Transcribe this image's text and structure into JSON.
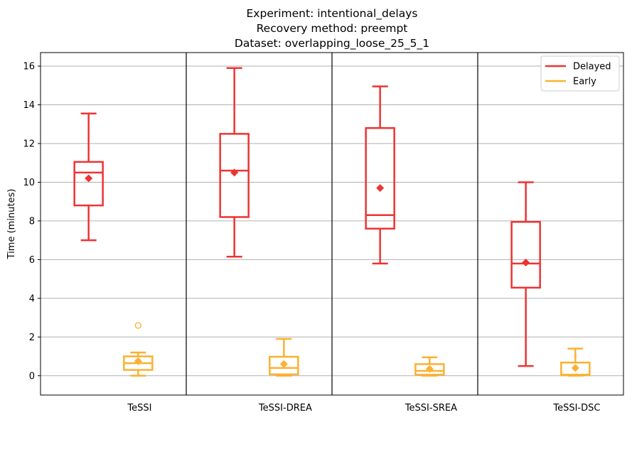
{
  "chart_data": {
    "type": "boxplot",
    "title_lines": [
      "Experiment: intentional_delays",
      "Recovery method: preempt",
      "Dataset: overlapping_loose_25_5_1"
    ],
    "ylabel": "Time (minutes)",
    "ylim": [
      -1,
      16.7
    ],
    "yticks": [
      0,
      2,
      4,
      6,
      8,
      10,
      12,
      14,
      16
    ],
    "grid": "horizontal",
    "legend_position": "top-right",
    "categories": [
      "TeSSI",
      "TeSSI-DREA",
      "TeSSI-SREA",
      "TeSSI-DSC"
    ],
    "series": [
      {
        "name": "Delayed",
        "color": "#ee3333",
        "boxes": [
          {
            "whislo": 7.0,
            "q1": 8.8,
            "med": 10.5,
            "q3": 11.05,
            "whishi": 13.55,
            "mean": 10.2,
            "fliers": []
          },
          {
            "whislo": 6.15,
            "q1": 8.2,
            "med": 10.6,
            "q3": 12.5,
            "whishi": 15.9,
            "mean": 10.5,
            "fliers": []
          },
          {
            "whislo": 5.8,
            "q1": 7.6,
            "med": 8.3,
            "q3": 12.8,
            "whishi": 14.95,
            "mean": 9.7,
            "fliers": []
          },
          {
            "whislo": 0.5,
            "q1": 4.55,
            "med": 5.8,
            "q3": 7.95,
            "whishi": 10.0,
            "mean": 5.85,
            "fliers": []
          }
        ]
      },
      {
        "name": "Early",
        "color": "#fbb131",
        "boxes": [
          {
            "whislo": 0.0,
            "q1": 0.3,
            "med": 0.65,
            "q3": 1.0,
            "whishi": 1.2,
            "mean": 0.75,
            "fliers": [
              2.6
            ]
          },
          {
            "whislo": 0.0,
            "q1": 0.07,
            "med": 0.4,
            "q3": 0.98,
            "whishi": 1.9,
            "mean": 0.6,
            "fliers": []
          },
          {
            "whislo": 0.0,
            "q1": 0.05,
            "med": 0.25,
            "q3": 0.6,
            "whishi": 0.95,
            "mean": 0.35,
            "fliers": []
          },
          {
            "whislo": 0.0,
            "q1": 0.02,
            "med": 0.05,
            "q3": 0.68,
            "whishi": 1.4,
            "mean": 0.4,
            "fliers": []
          }
        ]
      }
    ]
  }
}
